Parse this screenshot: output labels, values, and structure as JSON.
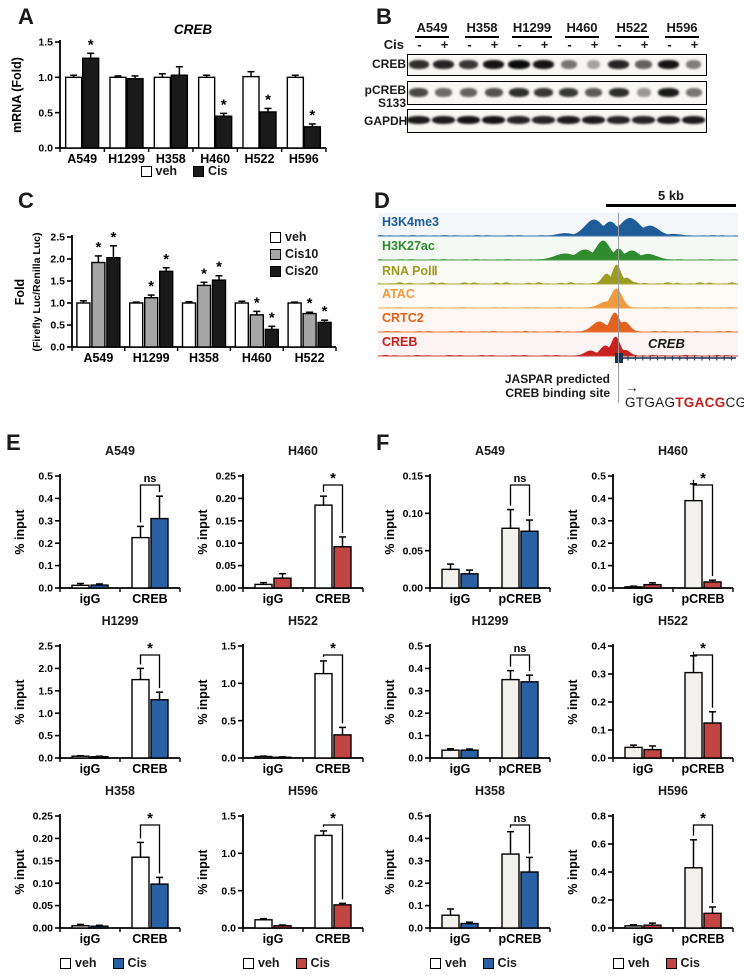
{
  "colors": {
    "blue": "#2a61a5",
    "red": "#c04543",
    "gray": "#a6a6a6",
    "black": "#1a1a1a",
    "white": "#ffffff",
    "off_white": "#f2f1ed",
    "seq_red": "#c0201d",
    "gene_model": "#16324f"
  },
  "panels": {
    "A": {
      "letter": "A",
      "legend": [
        {
          "label": "veh",
          "fill": "#ffffff"
        },
        {
          "label": "Cis",
          "fill": "#1a1a1a"
        }
      ]
    },
    "B": {
      "letter": "B",
      "cis_label": "Cis",
      "cell_lines": [
        "A549",
        "H358",
        "H1299",
        "H460",
        "H522",
        "H596"
      ],
      "signs": [
        "-",
        "+"
      ],
      "rows": [
        {
          "label_lines": [
            "CREB"
          ],
          "bands": [
            0.8,
            0.85,
            0.75,
            0.95,
            1.0,
            0.95,
            0.4,
            0.15,
            0.85,
            0.5,
            0.95,
            0.35
          ]
        },
        {
          "label_lines": [
            "pCREB",
            "S133"
          ],
          "bands": [
            0.65,
            0.45,
            0.5,
            0.6,
            0.8,
            0.75,
            0.75,
            0.55,
            0.8,
            0.2,
            0.9,
            0.4
          ]
        },
        {
          "label_lines": [
            "GAPDH"
          ],
          "bands": [
            0.9,
            0.9,
            0.95,
            0.95,
            0.85,
            0.85,
            0.9,
            0.9,
            0.85,
            0.85,
            0.9,
            0.9
          ]
        }
      ]
    },
    "C": {
      "letter": "C",
      "legend": [
        {
          "label": "veh",
          "fill": "#ffffff"
        },
        {
          "label": "Cis10",
          "fill": "#a6a6a6"
        },
        {
          "label": "Cis20",
          "fill": "#1a1a1a"
        }
      ]
    },
    "D": {
      "letter": "D",
      "scale_label": "5 kb",
      "gene_label": "CREB",
      "jaspar_line1": "JASPAR predicted",
      "jaspar_line2": "CREB binding site",
      "seq_prefix": "→ GTGAG",
      "seq_highlight": "TGACG",
      "seq_suffix": "CG",
      "tracks": [
        {
          "name": "H3K4me3",
          "color": "#1f5c99",
          "noise": 0.02,
          "peaks": [
            [
              0.6,
              0.025,
              0.8
            ],
            [
              0.645,
              0.02,
              0.7
            ],
            [
              0.7,
              0.028,
              0.88
            ],
            [
              0.755,
              0.024,
              0.5
            ],
            [
              0.52,
              0.02,
              0.12
            ],
            [
              0.82,
              0.02,
              0.08
            ]
          ]
        },
        {
          "name": "H3K27ac",
          "color": "#2e8b2e",
          "noise": 0.02,
          "peaks": [
            [
              0.52,
              0.028,
              0.3
            ],
            [
              0.575,
              0.024,
              0.5
            ],
            [
              0.625,
              0.02,
              0.95
            ],
            [
              0.668,
              0.014,
              0.55
            ],
            [
              0.705,
              0.02,
              0.45
            ],
            [
              0.75,
              0.024,
              0.28
            ]
          ]
        },
        {
          "name": "RNA PolⅡ",
          "color": "#9c9c1f",
          "noise": 0.07,
          "peaks": [
            [
              0.635,
              0.012,
              0.5
            ],
            [
              0.663,
              0.012,
              0.95
            ],
            [
              0.69,
              0.012,
              0.3
            ]
          ]
        },
        {
          "name": "ATAC",
          "color": "#f09a3e",
          "noise": 0.015,
          "peaks": [
            [
              0.662,
              0.016,
              0.95
            ],
            [
              0.635,
              0.02,
              0.3
            ]
          ]
        },
        {
          "name": "CRTC2",
          "color": "#e2611e",
          "noise": 0.03,
          "peaks": [
            [
              0.615,
              0.02,
              0.5
            ],
            [
              0.658,
              0.014,
              0.95
            ],
            [
              0.685,
              0.014,
              0.5
            ]
          ]
        },
        {
          "name": "CREB",
          "color": "#c8211e",
          "noise": 0.03,
          "peaks": [
            [
              0.59,
              0.015,
              0.25
            ],
            [
              0.632,
              0.015,
              0.5
            ],
            [
              0.66,
              0.013,
              0.95
            ],
            [
              0.688,
              0.012,
              0.28
            ]
          ]
        }
      ]
    },
    "E": {
      "letter": "E",
      "legends": [
        [
          {
            "label": "veh",
            "fill": "#ffffff"
          },
          {
            "label": "Cis",
            "fill": "#2a61a5"
          }
        ],
        [
          {
            "label": "veh",
            "fill": "#ffffff"
          },
          {
            "label": "Cis",
            "fill": "#c04543"
          }
        ]
      ]
    },
    "F": {
      "letter": "F",
      "legends": [
        [
          {
            "label": "veh",
            "fill": "#ffffff"
          },
          {
            "label": "Cis",
            "fill": "#2a61a5"
          }
        ],
        [
          {
            "label": "veh",
            "fill": "#ffffff"
          },
          {
            "label": "Cis",
            "fill": "#c04543"
          }
        ]
      ]
    }
  },
  "chart_data": {
    "A": {
      "type": "bar",
      "title": "CREB",
      "ylabel": "mRNA (Fold)",
      "ylim": [
        0,
        1.5
      ],
      "yticks": [
        0,
        0.5,
        1.0,
        1.5
      ],
      "dec": 1,
      "categories": [
        "A549",
        "H1299",
        "H358",
        "H460",
        "H522",
        "H596"
      ],
      "series": [
        {
          "name": "veh",
          "fill": "#ffffff",
          "values": [
            1.0,
            1.0,
            1.0,
            1.0,
            1.01,
            1.0
          ],
          "errors": [
            0.03,
            0.02,
            0.05,
            0.03,
            0.07,
            0.03
          ],
          "sig": [
            null,
            null,
            null,
            null,
            null,
            null
          ]
        },
        {
          "name": "Cis",
          "fill": "#1a1a1a",
          "values": [
            1.27,
            0.98,
            1.03,
            0.45,
            0.51,
            0.3
          ],
          "errors": [
            0.07,
            0.04,
            0.12,
            0.04,
            0.05,
            0.04
          ],
          "sig": [
            "*",
            null,
            null,
            "*",
            "*",
            "*"
          ]
        }
      ]
    },
    "C": {
      "type": "bar",
      "ylabel_lines": [
        "Fold",
        "(Firefly Luc/Renilla Luc)"
      ],
      "ylim": [
        0,
        2.5
      ],
      "yticks": [
        0,
        0.5,
        1.0,
        1.5,
        2.0,
        2.5
      ],
      "dec": 1,
      "categories": [
        "A549",
        "H1299",
        "H358",
        "H460",
        "H522"
      ],
      "series": [
        {
          "name": "veh",
          "fill": "#ffffff",
          "values": [
            1.0,
            1.0,
            1.0,
            1.0,
            1.0
          ],
          "errors": [
            0.05,
            0.02,
            0.03,
            0.04,
            0.02
          ],
          "sig": [
            null,
            null,
            null,
            null,
            null
          ]
        },
        {
          "name": "Cis10",
          "fill": "#a6a6a6",
          "values": [
            1.92,
            1.12,
            1.4,
            0.73,
            0.76
          ],
          "errors": [
            0.15,
            0.06,
            0.07,
            0.08,
            0.03
          ],
          "sig": [
            "*",
            "*",
            "*",
            "*",
            "*"
          ]
        },
        {
          "name": "Cis20",
          "fill": "#1a1a1a",
          "values": [
            2.03,
            1.72,
            1.52,
            0.4,
            0.56
          ],
          "errors": [
            0.27,
            0.08,
            0.1,
            0.07,
            0.05
          ],
          "sig": [
            "*",
            "*",
            "*",
            "*",
            "*"
          ]
        }
      ]
    },
    "E": {
      "type": "bar",
      "ylabel": "% input",
      "categories": [
        "igG",
        "CREB"
      ],
      "veh_fill": "#ffffff",
      "charts": [
        {
          "title": "A549",
          "cis_color": "#2a61a5",
          "ylim": [
            0,
            0.5
          ],
          "yticks": [
            0,
            0.1,
            0.2,
            0.3,
            0.4,
            0.5
          ],
          "dec": 1,
          "veh": [
            0.012,
            0.225
          ],
          "veh_err": [
            0.008,
            0.05
          ],
          "cis": [
            0.013,
            0.31
          ],
          "cis_err": [
            0.005,
            0.1
          ],
          "sig": "ns"
        },
        {
          "title": "H460",
          "cis_color": "#c04543",
          "ylim": [
            0,
            0.25
          ],
          "yticks": [
            0,
            0.05,
            0.1,
            0.15,
            0.2,
            0.25
          ],
          "dec": 2,
          "veh": [
            0.008,
            0.185
          ],
          "veh_err": [
            0.004,
            0.02
          ],
          "cis": [
            0.022,
            0.092
          ],
          "cis_err": [
            0.01,
            0.022
          ],
          "sig": "*"
        },
        {
          "title": "H1299",
          "cis_color": "#2a61a5",
          "ylim": [
            0,
            2.5
          ],
          "yticks": [
            0,
            0.5,
            1.0,
            1.5,
            2.0,
            2.5
          ],
          "dec": 1,
          "veh": [
            0.04,
            1.75
          ],
          "veh_err": [
            0.01,
            0.25
          ],
          "cis": [
            0.03,
            1.3
          ],
          "cis_err": [
            0.01,
            0.17
          ],
          "sig": "*"
        },
        {
          "title": "H522",
          "cis_color": "#c04543",
          "ylim": [
            0,
            1.5
          ],
          "yticks": [
            0,
            0.5,
            1.0,
            1.5
          ],
          "dec": 1,
          "veh": [
            0.02,
            1.13
          ],
          "veh_err": [
            0.005,
            0.17
          ],
          "cis": [
            0.01,
            0.31
          ],
          "cis_err": [
            0.005,
            0.1
          ],
          "sig": "*"
        },
        {
          "title": "H358",
          "cis_color": "#2a61a5",
          "ylim": [
            0,
            0.25
          ],
          "yticks": [
            0,
            0.05,
            0.1,
            0.15,
            0.2,
            0.25
          ],
          "dec": 2,
          "veh": [
            0.005,
            0.158
          ],
          "veh_err": [
            0.003,
            0.033
          ],
          "cis": [
            0.004,
            0.098
          ],
          "cis_err": [
            0.002,
            0.015
          ],
          "sig": "*"
        },
        {
          "title": "H596",
          "cis_color": "#c04543",
          "ylim": [
            0,
            1.5
          ],
          "yticks": [
            0,
            0.5,
            1.0,
            1.5
          ],
          "dec": 1,
          "veh": [
            0.11,
            1.24
          ],
          "veh_err": [
            0.015,
            0.06
          ],
          "cis": [
            0.03,
            0.31
          ],
          "cis_err": [
            0.01,
            0.02
          ],
          "sig": "*"
        }
      ]
    },
    "F": {
      "type": "bar",
      "ylabel": "% input",
      "categories": [
        "igG",
        "pCREB"
      ],
      "veh_fill": "#f2f1ed",
      "charts": [
        {
          "title": "A549",
          "cis_color": "#2a61a5",
          "ylim": [
            0,
            0.15
          ],
          "yticks": [
            0,
            0.05,
            0.1,
            0.15
          ],
          "dec": 2,
          "veh": [
            0.025,
            0.08
          ],
          "veh_err": [
            0.007,
            0.025
          ],
          "cis": [
            0.019,
            0.076
          ],
          "cis_err": [
            0.005,
            0.015
          ],
          "sig": "ns"
        },
        {
          "title": "H460",
          "cis_color": "#c04543",
          "ylim": [
            0,
            0.5
          ],
          "yticks": [
            0,
            0.1,
            0.2,
            0.3,
            0.4,
            0.5
          ],
          "dec": 1,
          "veh": [
            0.005,
            0.39
          ],
          "veh_err": [
            0.003,
            0.075
          ],
          "cis": [
            0.015,
            0.027
          ],
          "cis_err": [
            0.008,
            0.008
          ],
          "sig": "*"
        },
        {
          "title": "H1299",
          "cis_color": "#2a61a5",
          "ylim": [
            0,
            0.5
          ],
          "yticks": [
            0,
            0.1,
            0.2,
            0.3,
            0.4,
            0.5
          ],
          "dec": 1,
          "veh": [
            0.035,
            0.35
          ],
          "veh_err": [
            0.006,
            0.04
          ],
          "cis": [
            0.035,
            0.34
          ],
          "cis_err": [
            0.005,
            0.03
          ],
          "sig": "ns"
        },
        {
          "title": "H522",
          "cis_color": "#c04543",
          "ylim": [
            0,
            0.4
          ],
          "yticks": [
            0,
            0.1,
            0.2,
            0.3,
            0.4
          ],
          "dec": 1,
          "veh": [
            0.038,
            0.305
          ],
          "veh_err": [
            0.008,
            0.06
          ],
          "cis": [
            0.03,
            0.125
          ],
          "cis_err": [
            0.013,
            0.04
          ],
          "sig": "*"
        },
        {
          "title": "H358",
          "cis_color": "#2a61a5",
          "ylim": [
            0,
            0.5
          ],
          "yticks": [
            0,
            0.1,
            0.2,
            0.3,
            0.4,
            0.5
          ],
          "dec": 1,
          "veh": [
            0.057,
            0.33
          ],
          "veh_err": [
            0.028,
            0.1
          ],
          "cis": [
            0.02,
            0.25
          ],
          "cis_err": [
            0.006,
            0.065
          ],
          "sig": "ns"
        },
        {
          "title": "H596",
          "cis_color": "#c04543",
          "ylim": [
            0,
            0.8
          ],
          "yticks": [
            0,
            0.2,
            0.4,
            0.6,
            0.8
          ],
          "dec": 1,
          "veh": [
            0.015,
            0.43
          ],
          "veh_err": [
            0.008,
            0.2
          ],
          "cis": [
            0.02,
            0.105
          ],
          "cis_err": [
            0.015,
            0.045
          ],
          "sig": "*"
        }
      ]
    }
  }
}
